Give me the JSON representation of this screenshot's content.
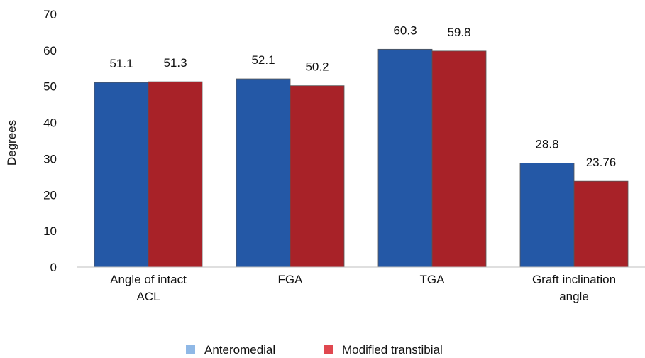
{
  "chart_data": {
    "type": "bar",
    "title": "",
    "xlabel": "",
    "ylabel": "Degrees",
    "ylim": [
      0,
      70
    ],
    "yticks": [
      0,
      10,
      20,
      30,
      40,
      50,
      60,
      70
    ],
    "grid": false,
    "legend_position": "bottom",
    "categories": [
      [
        "Angle of intact",
        "ACL"
      ],
      [
        "FGA"
      ],
      [
        "TGA"
      ],
      [
        "Graft inclination",
        "angle"
      ]
    ],
    "series": [
      {
        "name": "Anteromedial",
        "color": "#2458a6",
        "legend_color": "#8fb8e6",
        "values": [
          51.1,
          52.1,
          60.3,
          28.8
        ],
        "labels": [
          "51.1",
          "52.1",
          "60.3",
          "28.8"
        ]
      },
      {
        "name": "Modified transtibial",
        "color": "#a82228",
        "legend_color": "#e0474f",
        "values": [
          51.3,
          50.2,
          59.8,
          23.76
        ],
        "labels": [
          "51.3",
          "50.2",
          "59.8",
          "23.76"
        ]
      }
    ]
  }
}
